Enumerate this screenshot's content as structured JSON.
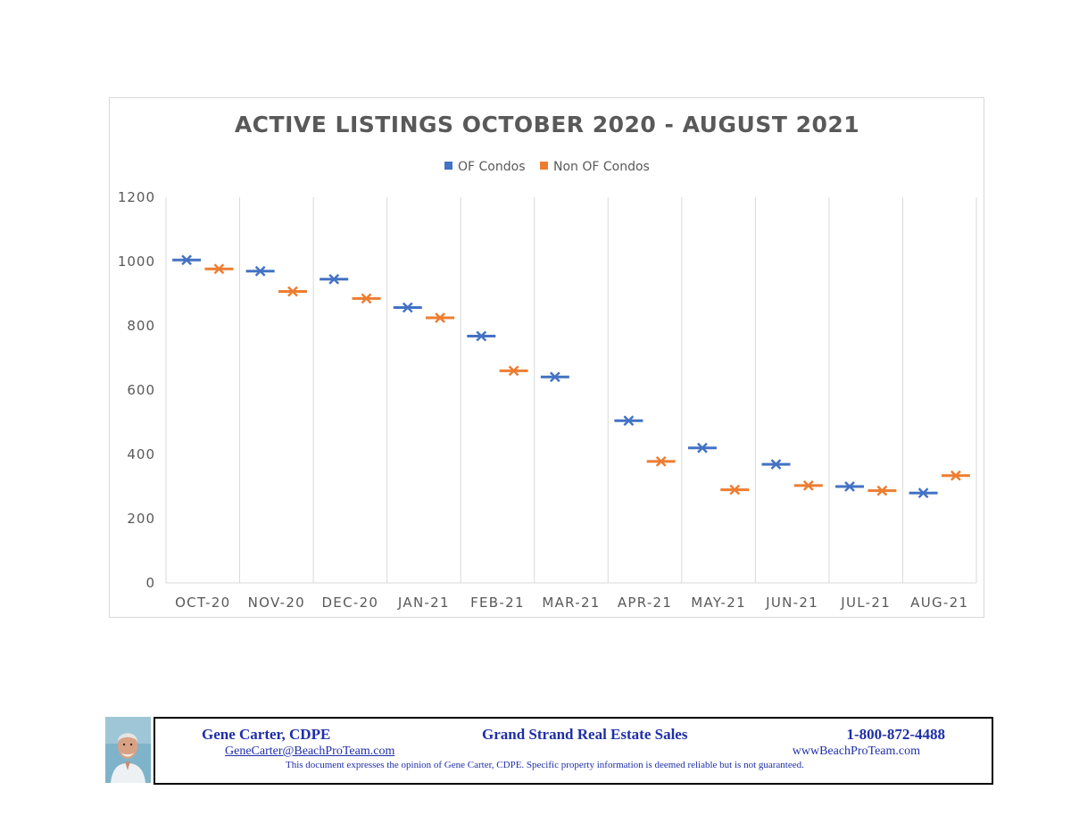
{
  "chart_data": {
    "type": "scatter",
    "title": "ACTIVE LISTINGS  OCTOBER 2020 - AUGUST 2021",
    "categories": [
      "OCT-20",
      "NOV-20",
      "DEC-20",
      "JAN-21",
      "FEB-21",
      "MAR-21",
      "APR-21",
      "MAY-21",
      "JUN-21",
      "JUL-21",
      "AUG-21"
    ],
    "series": [
      {
        "name": "OF Condos",
        "color": "#4472c4",
        "values": [
          1005,
          970,
          945,
          857,
          768,
          641,
          505,
          420,
          369,
          300,
          280
        ]
      },
      {
        "name": "Non OF Condos",
        "color": "#ed7d31",
        "values": [
          977,
          907,
          885,
          825,
          660,
          null,
          378,
          290,
          303,
          287,
          334
        ]
      }
    ],
    "ylim": [
      0,
      1200
    ],
    "yticks": [
      "0",
      "200",
      "400",
      "600",
      "800",
      "1000",
      "1200"
    ],
    "xlabel": "",
    "ylabel": "",
    "legend_position": "top",
    "grid": "vertical",
    "marker": "x-with-dash"
  },
  "footer": {
    "name": "Gene Carter, CDPE",
    "company": "Grand Strand Real Estate Sales",
    "phone": "1-800-872-4488",
    "email": "GeneCarter@BeachProTeam.com",
    "website": "wwwBeachProTeam.com",
    "disclaimer": "This document expresses the opinion of Gene Carter, CDPE.  Specific property information is deemed reliable but is not guaranteed.",
    "photo_icon": "agent-photo"
  }
}
